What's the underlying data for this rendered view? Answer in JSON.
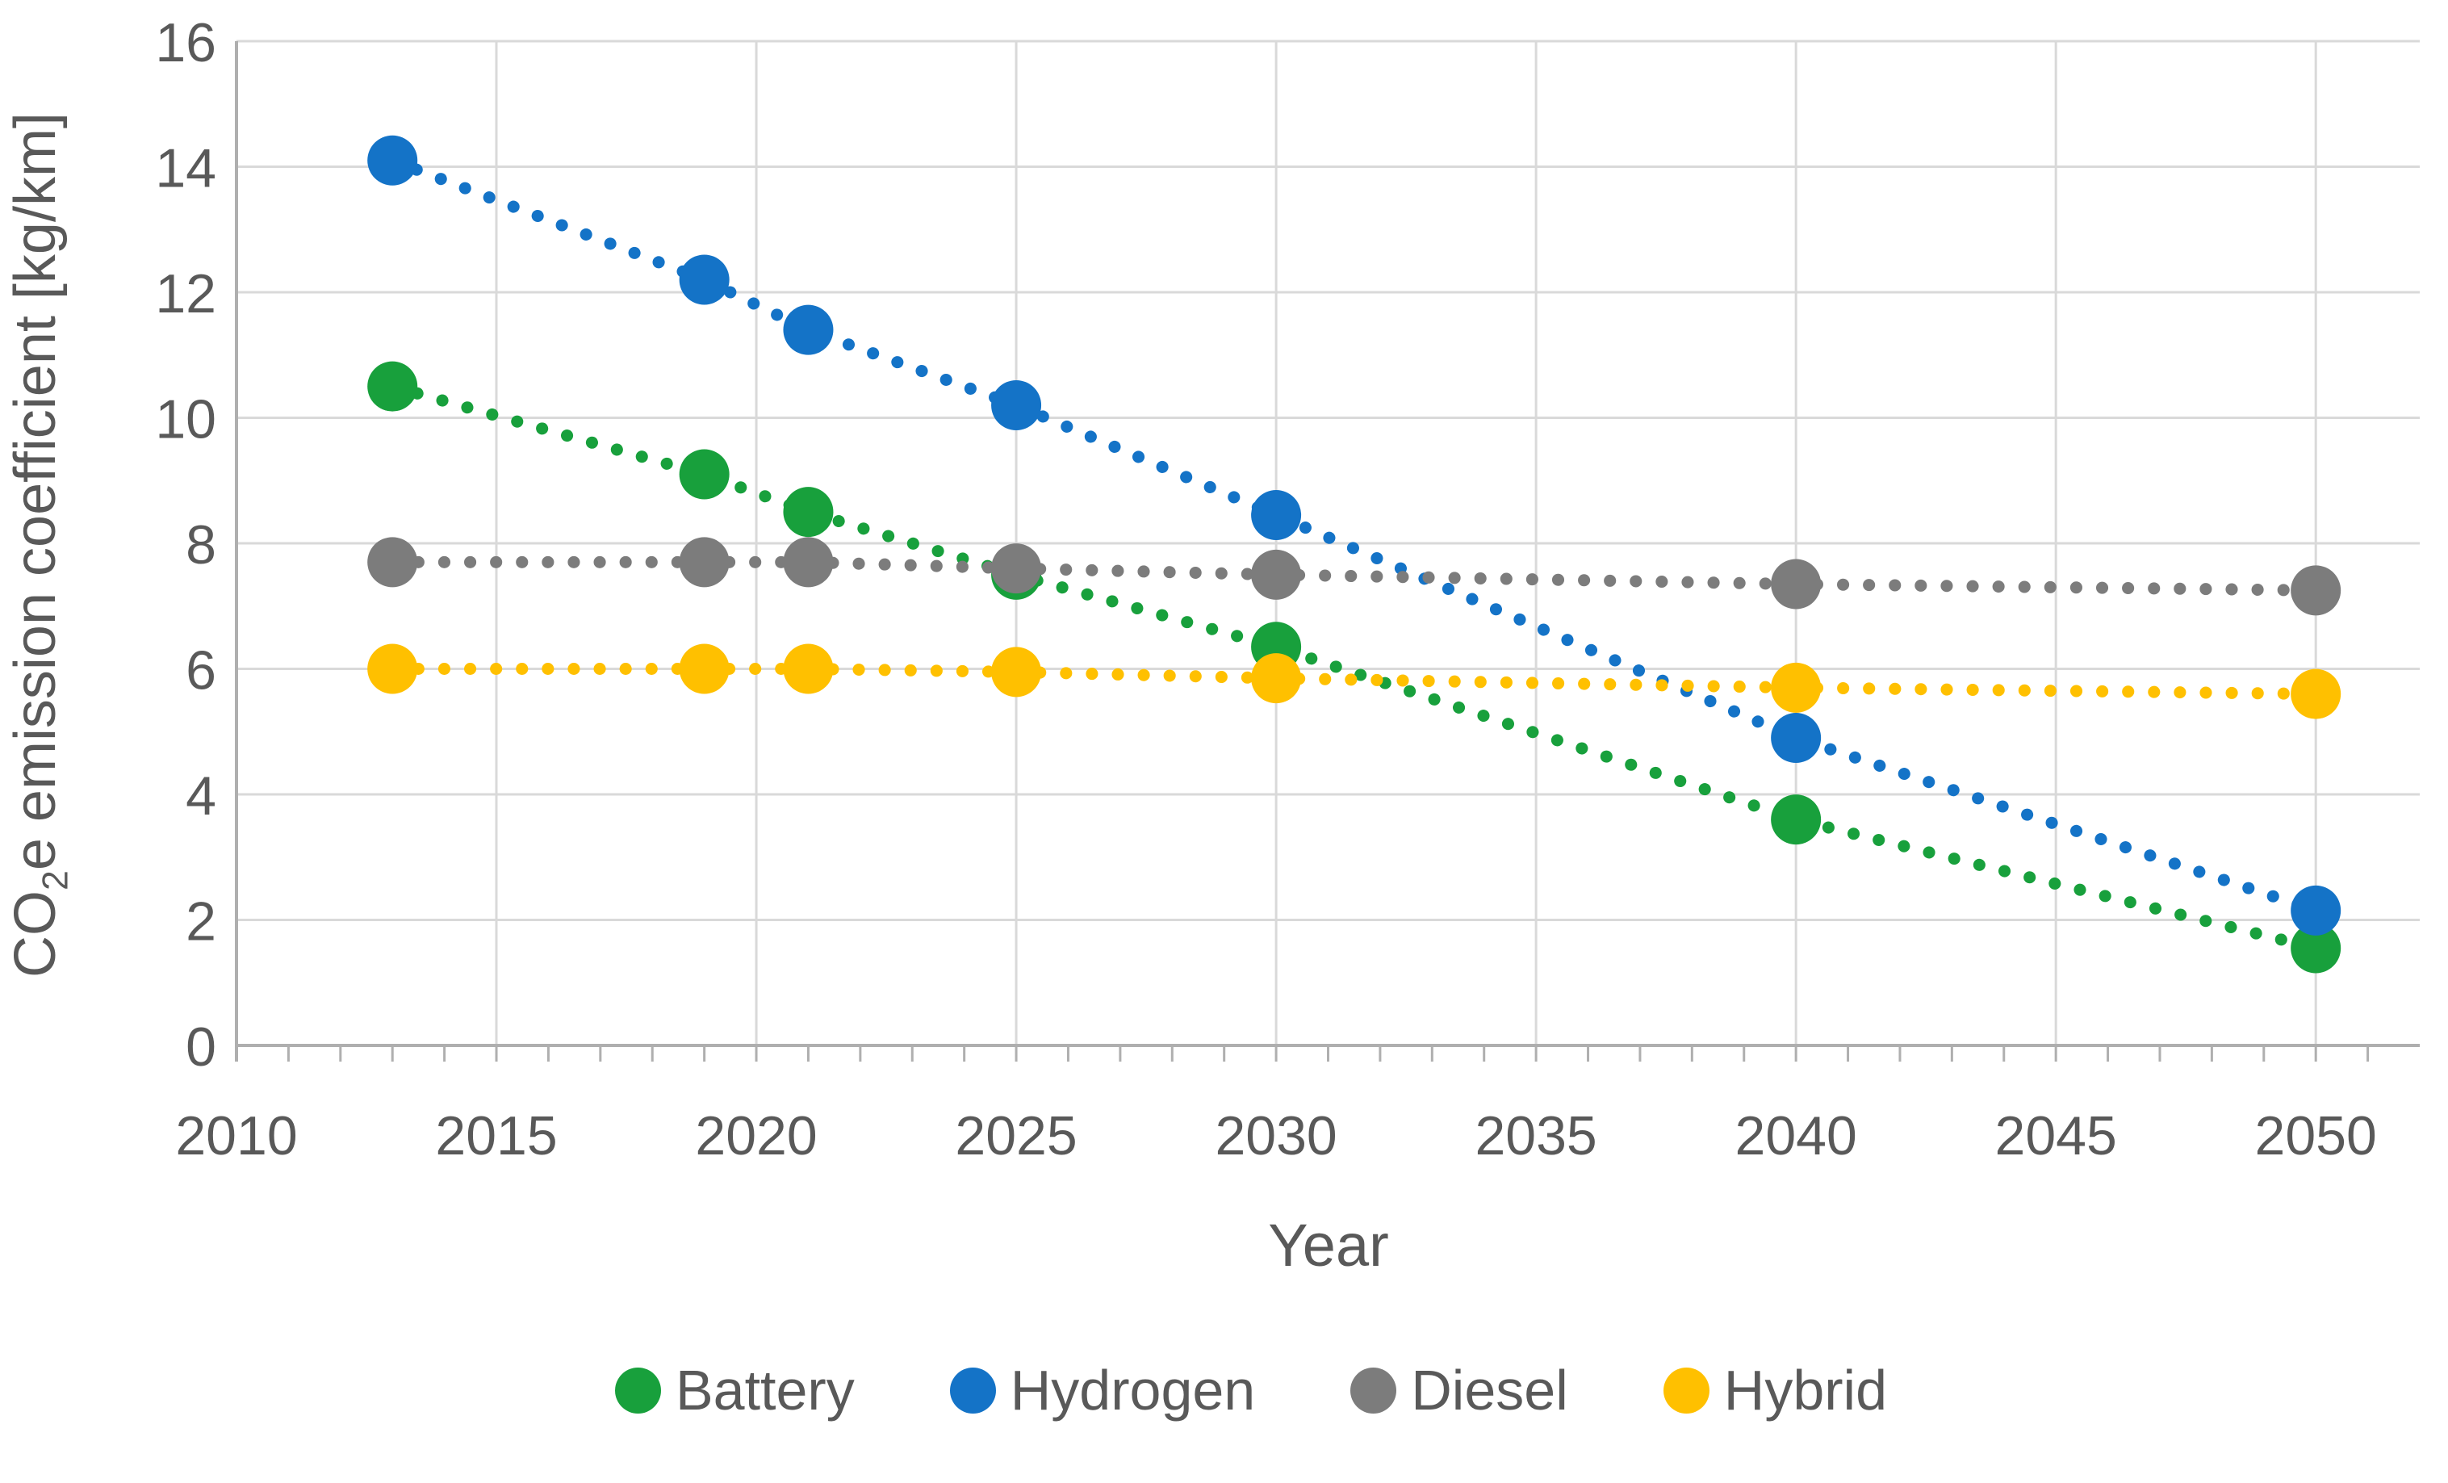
{
  "chart_data": {
    "type": "scatter",
    "title": "",
    "xlabel": "Year",
    "ylabel": "CO2e emission coefficient [kg/km]",
    "ylabel_parts": {
      "prefix": "CO",
      "subscript": "2",
      "suffix": "e emission coefficient [kg/km]"
    },
    "x": [
      2013,
      2019,
      2021,
      2025,
      2030,
      2040,
      2050
    ],
    "series": [
      {
        "name": "Battery",
        "color": "#18A03C",
        "values": [
          10.5,
          9.1,
          8.5,
          7.5,
          6.35,
          3.6,
          1.55
        ]
      },
      {
        "name": "Hydrogen",
        "color": "#1473C7",
        "values": [
          14.1,
          12.2,
          11.4,
          10.2,
          8.45,
          4.9,
          2.15
        ]
      },
      {
        "name": "Diesel",
        "color": "#7C7C7C",
        "values": [
          7.7,
          7.7,
          7.7,
          7.6,
          7.5,
          7.35,
          7.25
        ]
      },
      {
        "name": "Hybrid",
        "color": "#FFC000",
        "values": [
          6.0,
          6.0,
          6.0,
          5.95,
          5.85,
          5.7,
          5.6
        ]
      }
    ],
    "x_axis": {
      "min": 2010,
      "max": 2052,
      "tick_labels": [
        "2010",
        "2015",
        "2020",
        "2025",
        "2030",
        "2035",
        "2040",
        "2045",
        "2050"
      ],
      "major_ticks": [
        2010,
        2015,
        2020,
        2025,
        2030,
        2035,
        2040,
        2045,
        2050
      ],
      "minor_tick_every": 1
    },
    "y_axis": {
      "min": 0,
      "max": 16,
      "tick_labels": [
        "0",
        "2",
        "4",
        "6",
        "8",
        "10",
        "12",
        "14",
        "16"
      ],
      "major_ticks": [
        0,
        2,
        4,
        6,
        8,
        10,
        12,
        14,
        16
      ]
    },
    "grid": true,
    "legend_position": "bottom",
    "line_style": "dotted",
    "marker": "circle"
  },
  "styles": {
    "gridline_color": "#D9D9D9",
    "axis_color": "#AFAFAF",
    "text_color": "#595959",
    "background_color": "#FFFFFF"
  }
}
